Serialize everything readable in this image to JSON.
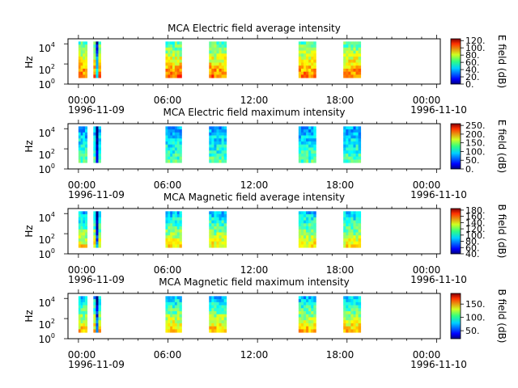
{
  "chart_data": [
    {
      "type": "heatmap",
      "title": "MCA  Electric field average intensity",
      "ylabel": "Hz",
      "y_ticks": [
        {
          "base": "10",
          "exp": "0"
        },
        {
          "base": "10",
          "exp": "2"
        },
        {
          "base": "10",
          "exp": "4"
        }
      ],
      "x_tick_labels": [
        "00:00",
        "06:00",
        "12:00",
        "18:00",
        "00:00"
      ],
      "x_date_labels": [
        "1996-11-09",
        "1996-11-10"
      ],
      "colorbar": {
        "label": "E field (dB)",
        "ticks": [
          "0.",
          "20.",
          "40.",
          "60.",
          "80.",
          "100.",
          "120."
        ],
        "range": [
          0,
          125
        ]
      },
      "segments": [
        {
          "start": "00:00",
          "end": "00:35"
        },
        {
          "start": "01:00",
          "end": "01:30"
        },
        {
          "start": "05:50",
          "end": "06:55"
        },
        {
          "start": "08:45",
          "end": "09:55"
        },
        {
          "start": "14:45",
          "end": "15:55"
        },
        {
          "start": "17:45",
          "end": "18:55"
        }
      ]
    },
    {
      "type": "heatmap",
      "title": "MCA  Electric field maximum intensity",
      "ylabel": "Hz",
      "y_ticks": [
        {
          "base": "10",
          "exp": "0"
        },
        {
          "base": "10",
          "exp": "2"
        },
        {
          "base": "10",
          "exp": "4"
        }
      ],
      "x_tick_labels": [
        "00:00",
        "06:00",
        "12:00",
        "18:00",
        "00:00"
      ],
      "x_date_labels": [
        "1996-11-09",
        "1996-11-10"
      ],
      "colorbar": {
        "label": "E field (dB)",
        "ticks": [
          "0.",
          "50.",
          "100.",
          "150.",
          "200.",
          "250."
        ],
        "range": [
          0,
          260
        ]
      },
      "segments": [
        {
          "start": "00:00",
          "end": "00:35"
        },
        {
          "start": "01:00",
          "end": "01:30"
        },
        {
          "start": "05:50",
          "end": "06:55"
        },
        {
          "start": "08:45",
          "end": "09:55"
        },
        {
          "start": "14:45",
          "end": "15:55"
        },
        {
          "start": "17:45",
          "end": "18:55"
        }
      ]
    },
    {
      "type": "heatmap",
      "title": "MCA  Magnetic field average intensity",
      "ylabel": "Hz",
      "y_ticks": [
        {
          "base": "10",
          "exp": "0"
        },
        {
          "base": "10",
          "exp": "2"
        },
        {
          "base": "10",
          "exp": "4"
        }
      ],
      "x_tick_labels": [
        "00:00",
        "06:00",
        "12:00",
        "18:00",
        "00:00"
      ],
      "x_date_labels": [
        "1996-11-09",
        "1996-11-10"
      ],
      "colorbar": {
        "label": "B field (dB)",
        "ticks": [
          "40.",
          "60.",
          "80.",
          "100.",
          "120.",
          "140.",
          "160.",
          "180."
        ],
        "range": [
          40,
          185
        ]
      },
      "segments": [
        {
          "start": "00:00",
          "end": "00:35"
        },
        {
          "start": "01:00",
          "end": "01:30"
        },
        {
          "start": "05:50",
          "end": "06:55"
        },
        {
          "start": "08:45",
          "end": "09:55"
        },
        {
          "start": "14:45",
          "end": "15:55"
        },
        {
          "start": "17:45",
          "end": "18:55"
        }
      ]
    },
    {
      "type": "heatmap",
      "title": "MCA  Magnetic field maximum intensity",
      "ylabel": "Hz",
      "y_ticks": [
        {
          "base": "10",
          "exp": "0"
        },
        {
          "base": "10",
          "exp": "2"
        },
        {
          "base": "10",
          "exp": "4"
        }
      ],
      "x_tick_labels": [
        "00:00",
        "06:00",
        "12:00",
        "18:00",
        "00:00"
      ],
      "x_date_labels": [
        "1996-11-09",
        "1996-11-10"
      ],
      "colorbar": {
        "label": "B field (dB)",
        "ticks": [
          "50.",
          "100.",
          "150."
        ],
        "range": [
          20,
          190
        ]
      },
      "segments": [
        {
          "start": "00:00",
          "end": "00:35"
        },
        {
          "start": "01:00",
          "end": "01:30"
        },
        {
          "start": "05:50",
          "end": "06:55"
        },
        {
          "start": "08:45",
          "end": "09:55"
        },
        {
          "start": "14:45",
          "end": "15:55"
        },
        {
          "start": "17:45",
          "end": "18:55"
        }
      ]
    }
  ]
}
